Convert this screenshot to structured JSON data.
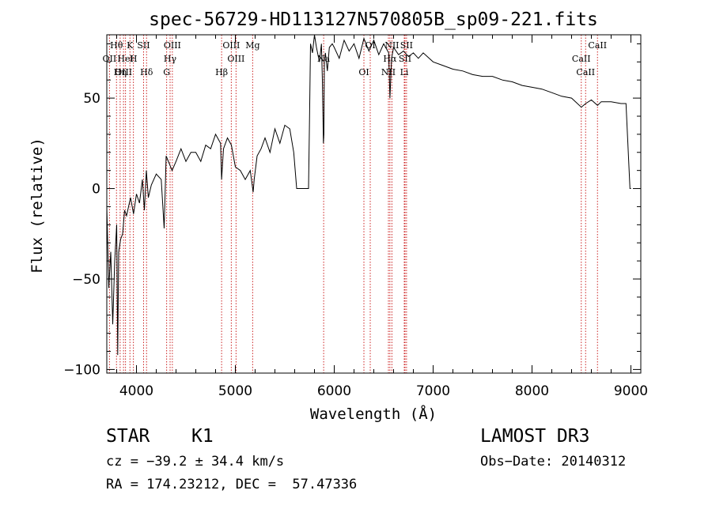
{
  "chart_data": {
    "type": "line",
    "title": "spec-56729-HD113127N570805B_sp09-221.fits",
    "xlabel": "Wavelength (Å)",
    "ylabel": "Flux (relative)",
    "xlim": [
      3700,
      9100
    ],
    "ylim": [
      -102,
      85
    ],
    "x_ticks": [
      4000,
      5000,
      6000,
      7000,
      8000,
      9000
    ],
    "y_ticks": [
      -100,
      -50,
      0,
      50
    ],
    "x_tick_labels": [
      "4000",
      "5000",
      "6000",
      "7000",
      "8000",
      "9000"
    ],
    "y_tick_labels": [
      "−100",
      "−50",
      "0",
      "50"
    ],
    "series": [
      {
        "name": "spectrum",
        "x": [
          3700,
          3720,
          3740,
          3760,
          3780,
          3800,
          3810,
          3820,
          3840,
          3860,
          3880,
          3900,
          3920,
          3940,
          3970,
          4000,
          4030,
          4060,
          4080,
          4100,
          4120,
          4150,
          4200,
          4250,
          4280,
          4300,
          4330,
          4360,
          4400,
          4450,
          4500,
          4550,
          4600,
          4650,
          4700,
          4750,
          4800,
          4850,
          4861,
          4880,
          4920,
          4960,
          5000,
          5050,
          5100,
          5150,
          5180,
          5190,
          5220,
          5260,
          5300,
          5350,
          5400,
          5450,
          5500,
          5550,
          5590,
          5620,
          5630,
          5650,
          5700,
          5740,
          5750,
          5760,
          5780,
          5800,
          5820,
          5850,
          5870,
          5880,
          5890,
          5895,
          5900,
          5910,
          5930,
          5950,
          5980,
          6000,
          6050,
          6100,
          6150,
          6200,
          6250,
          6300,
          6350,
          6400,
          6450,
          6500,
          6550,
          6563,
          6580,
          6600,
          6650,
          6700,
          6750,
          6800,
          6850,
          6900,
          7000,
          7100,
          7200,
          7300,
          7400,
          7500,
          7600,
          7700,
          7800,
          7900,
          8000,
          8100,
          8200,
          8300,
          8400,
          8498,
          8542,
          8600,
          8662,
          8700,
          8800,
          8900,
          8950,
          8990,
          9000,
          9001
        ],
        "values": [
          -10,
          -55,
          -35,
          -75,
          -40,
          -20,
          -92,
          -35,
          -28,
          -25,
          -12,
          -15,
          -10,
          -5,
          -14,
          -3,
          -8,
          5,
          -12,
          10,
          -5,
          2,
          8,
          5,
          -22,
          18,
          14,
          10,
          15,
          22,
          15,
          20,
          20,
          15,
          24,
          22,
          30,
          25,
          5,
          22,
          28,
          24,
          12,
          10,
          5,
          10,
          -2,
          5,
          18,
          22,
          28,
          20,
          33,
          25,
          35,
          33,
          20,
          0,
          0,
          0,
          0,
          0,
          40,
          80,
          75,
          85,
          78,
          70,
          80,
          60,
          25,
          30,
          70,
          75,
          65,
          78,
          80,
          78,
          72,
          82,
          76,
          80,
          72,
          83,
          76,
          82,
          74,
          80,
          75,
          50,
          72,
          78,
          74,
          76,
          73,
          75,
          72,
          75,
          70,
          68,
          66,
          65,
          63,
          62,
          62,
          60,
          59,
          57,
          56,
          55,
          53,
          51,
          50,
          45,
          47,
          49,
          46,
          48,
          48,
          47,
          47,
          0,
          0,
          0
        ]
      }
    ],
    "line_markers": [
      {
        "label": "Hθ",
        "x": 3798
      },
      {
        "label": "OII",
        "x": 3727
      },
      {
        "label": "OIII",
        "x": 3869
      },
      {
        "label": "K",
        "x": 3934
      },
      {
        "label": "HeI",
        "x": 3889
      },
      {
        "label": "Hη",
        "x": 3835
      },
      {
        "label": "SII",
        "x": 4072
      },
      {
        "label": "H",
        "x": 3969
      },
      {
        "label": "Hδ",
        "x": 4102
      },
      {
        "label": "OIII",
        "x": 4363
      },
      {
        "label": "Hγ",
        "x": 4340
      },
      {
        "label": "G",
        "x": 4305
      },
      {
        "label": "OIII",
        "x": 4959
      },
      {
        "label": "OIII",
        "x": 5007
      },
      {
        "label": "Hβ",
        "x": 4861
      },
      {
        "label": "Mg",
        "x": 5175
      },
      {
        "label": "Na",
        "x": 5893
      },
      {
        "label": "OI",
        "x": 6300
      },
      {
        "label": "OI",
        "x": 6364
      },
      {
        "label": "Hα",
        "x": 6563
      },
      {
        "label": "NII",
        "x": 6548
      },
      {
        "label": "NII",
        "x": 6583
      },
      {
        "label": "SII",
        "x": 6716
      },
      {
        "label": "Li",
        "x": 6708
      },
      {
        "label": "SII",
        "x": 6731
      },
      {
        "label": "CaII",
        "x": 8498
      },
      {
        "label": "CaII",
        "x": 8542
      },
      {
        "label": "CaII",
        "x": 8662
      }
    ]
  },
  "info": {
    "object_class": "STAR",
    "subclass": "K1",
    "survey": "LAMOST DR3",
    "redshift": "cz = −39.2 ± 34.4 km/s",
    "obs_date": "Obs−Date: 20140312",
    "coords": "RA = 174.23212, DEC =  57.47336"
  },
  "colors": {
    "line": "#000000",
    "marker": "#cc2222",
    "background": "#ffffff"
  }
}
